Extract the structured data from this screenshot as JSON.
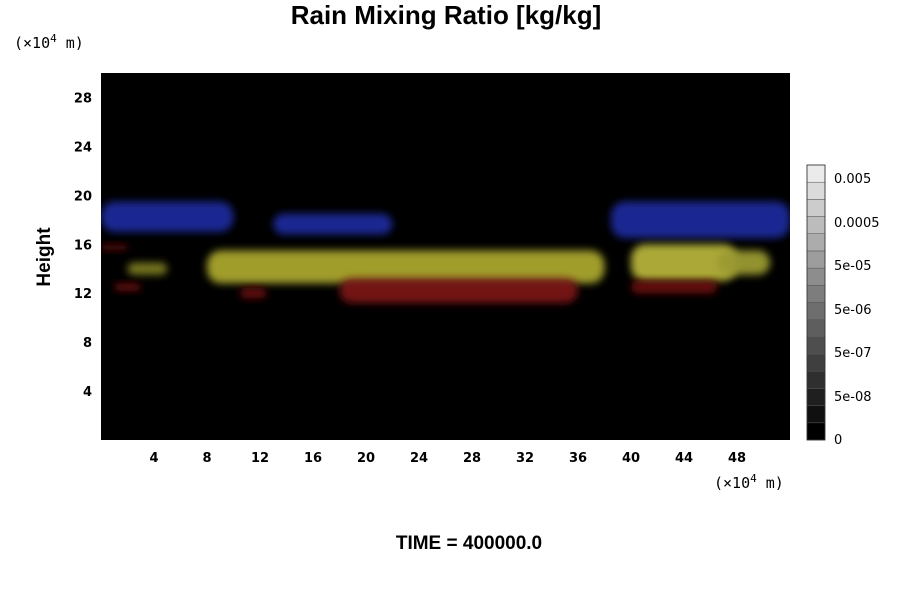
{
  "chart_data": {
    "type": "heatmap",
    "title": "Rain Mixing Ratio [kg/kg]",
    "ylabel": "Height",
    "x_unit": {
      "prefix": "(×10",
      "exp": "4",
      "suffix": " m)"
    },
    "y_unit": {
      "prefix": "(×10",
      "exp": "4",
      "suffix": " m)"
    },
    "xlim": [
      0,
      52
    ],
    "ylim": [
      0,
      30
    ],
    "x_ticks": [
      4,
      8,
      12,
      16,
      20,
      24,
      28,
      32,
      36,
      40,
      44,
      48
    ],
    "y_ticks": [
      4,
      8,
      12,
      16,
      20,
      24,
      28
    ],
    "colorbar": {
      "labels": [
        "0.005",
        "0.0005",
        "5e-05",
        "5e-06",
        "5e-07",
        "5e-08",
        "0"
      ],
      "levels": 16
    },
    "footer": "TIME = 400000.0",
    "regions": [
      {
        "color": "#1f2a9a",
        "x0": 0.0,
        "x1": 10.0,
        "y0": 17.0,
        "y1": 19.5
      },
      {
        "color": "#1f2a9a",
        "x0": 13.0,
        "x1": 22.0,
        "y0": 16.8,
        "y1": 18.5
      },
      {
        "color": "#1f2a9a",
        "x0": 38.5,
        "x1": 52.0,
        "y0": 16.5,
        "y1": 19.5
      },
      {
        "color": "#a9a62e",
        "x0": 8.0,
        "x1": 38.0,
        "y0": 12.8,
        "y1": 15.5
      },
      {
        "color": "#b5b23a",
        "x0": 40.0,
        "x1": 48.0,
        "y0": 13.0,
        "y1": 16.0
      },
      {
        "color": "#9a9a30",
        "x0": 46.5,
        "x1": 50.5,
        "y0": 13.5,
        "y1": 15.5
      },
      {
        "color": "#7d7d24",
        "x0": 2.0,
        "x1": 5.0,
        "y0": 13.5,
        "y1": 14.5
      },
      {
        "color": "#7a1212",
        "x0": 18.0,
        "x1": 36.0,
        "y0": 11.2,
        "y1": 13.2
      },
      {
        "color": "#6e1010",
        "x0": 40.0,
        "x1": 46.5,
        "y0": 12.0,
        "y1": 13.0
      },
      {
        "color": "#6e1010",
        "x0": 1.0,
        "x1": 3.0,
        "y0": 12.2,
        "y1": 12.8
      },
      {
        "color": "#6e1010",
        "x0": 10.5,
        "x1": 12.5,
        "y0": 11.6,
        "y1": 12.4
      },
      {
        "color": "#5a0c0c",
        "x0": 0.0,
        "x1": 2.0,
        "y0": 15.5,
        "y1": 16.0
      }
    ]
  }
}
